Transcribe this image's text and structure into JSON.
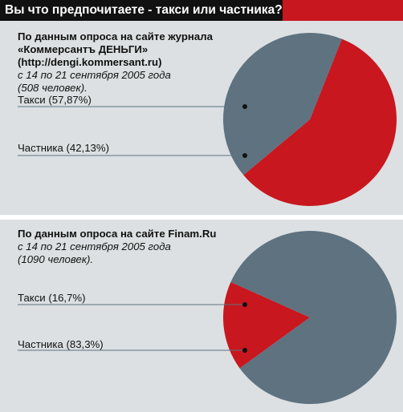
{
  "header": {
    "title": "Вы что предпочитаете - такси или частника?",
    "accent_color": "#c8171e"
  },
  "colors": {
    "taxi": "#c8171e",
    "private": "#5e7280",
    "panel_bg": "#dce0e2",
    "leader": "#5e7280"
  },
  "chart_data": [
    {
      "type": "pie",
      "source": {
        "line1": "По данным опроса на сайте журнала",
        "line2": "«Коммерсантъ ДЕНЬГИ»",
        "line3": "(http://dengi.kommersant.ru)",
        "line4": "с 14  по 21 сентября 2005 года",
        "line5": "(508 человек)."
      },
      "slices": [
        {
          "label": "Такси (57,87%)",
          "value": 57.87,
          "color": "#c8171e"
        },
        {
          "label": "Частника  (42,13%)",
          "value": 42.13,
          "color": "#5e7280"
        }
      ]
    },
    {
      "type": "pie",
      "source": {
        "line1": "По данным опроса на сайте Finam.Ru",
        "line2": "с 14  по 21 сентября 2005 года",
        "line3": "(1090 человек)."
      },
      "slices": [
        {
          "label": "Такси (16,7%)",
          "value": 16.7,
          "color": "#c8171e"
        },
        {
          "label": "Частника  (83,3%)",
          "value": 83.3,
          "color": "#5e7280"
        }
      ]
    }
  ]
}
